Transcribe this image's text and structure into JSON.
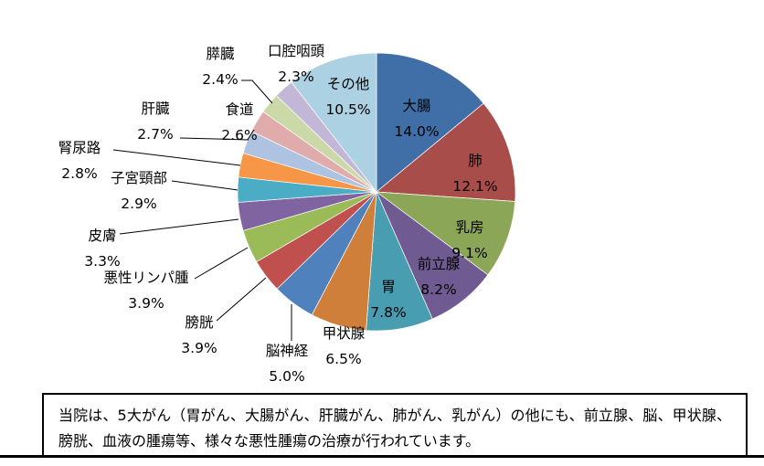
{
  "chart_data": {
    "type": "pie",
    "title": "",
    "unit": "%",
    "direction": "clockwise",
    "start_angle_deg": 0,
    "legend": "none",
    "labels_show": "category-name-and-percentage",
    "slices": [
      {
        "label": "大腸",
        "value": 14.0,
        "display": "14.0%",
        "color": "#3F6FA6",
        "label_placement": "inside"
      },
      {
        "label": "肺",
        "value": 12.1,
        "display": "12.1%",
        "color": "#A94D4B",
        "label_placement": "inside"
      },
      {
        "label": "乳房",
        "value": 9.1,
        "display": "9.1%",
        "color": "#8BA656",
        "label_placement": "inside"
      },
      {
        "label": "前立腺",
        "value": 8.2,
        "display": "8.2%",
        "color": "#705A92",
        "label_placement": "inside"
      },
      {
        "label": "胃",
        "value": 7.8,
        "display": "7.8%",
        "color": "#489DB0",
        "label_placement": "inside"
      },
      {
        "label": "甲状腺",
        "value": 6.5,
        "display": "6.5%",
        "color": "#CF7F39",
        "label_placement": "outside"
      },
      {
        "label": "脳神経",
        "value": 5.0,
        "display": "5.0%",
        "color": "#4F81BD",
        "label_placement": "outside"
      },
      {
        "label": "膀胱",
        "value": 3.9,
        "display": "3.9%",
        "color": "#C0504D",
        "label_placement": "outside"
      },
      {
        "label": "悪性リンパ腫",
        "value": 3.9,
        "display": "3.9%",
        "color": "#9BBB59",
        "label_placement": "outside"
      },
      {
        "label": "皮膚",
        "value": 3.3,
        "display": "3.3%",
        "color": "#8064A2",
        "label_placement": "outside"
      },
      {
        "label": "子宮頸部",
        "value": 2.9,
        "display": "2.9%",
        "color": "#4BACC6",
        "label_placement": "outside"
      },
      {
        "label": "腎尿路",
        "value": 2.8,
        "display": "2.8%",
        "color": "#F79646",
        "label_placement": "outside"
      },
      {
        "label": "肝臓",
        "value": 2.7,
        "display": "2.7%",
        "color": "#AEC3E2",
        "label_placement": "outside"
      },
      {
        "label": "食道",
        "value": 2.6,
        "display": "2.6%",
        "color": "#E0ACAB",
        "label_placement": "outside"
      },
      {
        "label": "膵臓",
        "value": 2.4,
        "display": "2.4%",
        "color": "#CBD9A9",
        "label_placement": "outside"
      },
      {
        "label": "口腔咽頭",
        "value": 2.3,
        "display": "2.3%",
        "color": "#C2B7D7",
        "label_placement": "outside"
      },
      {
        "label": "その他",
        "value": 10.5,
        "display": "10.5%",
        "color": "#ABD1E2",
        "label_placement": "inside"
      }
    ]
  },
  "caption": {
    "text": "当院は、5大がん（胃がん、大腸がん、肝臓がん、肺がん、乳がん）の他にも、前立腺、脳、甲状腺、膀胱、血液の腫瘍等、様々な悪性腫瘍の治療が行われています。"
  }
}
